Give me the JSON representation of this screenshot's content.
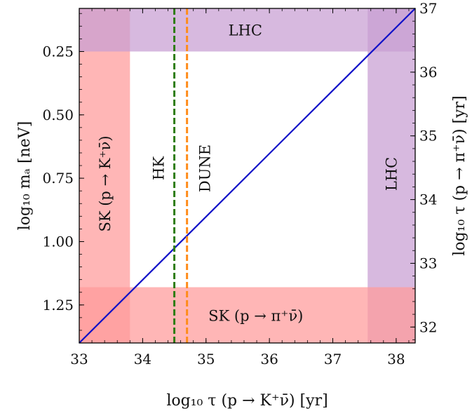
{
  "chart_data": {
    "type": "line",
    "x_axis": {
      "label": "log₁₀ τ (p → K⁺ν̄) [yr]",
      "ticks": [
        33,
        34,
        35,
        36,
        37,
        38
      ],
      "lim": [
        33,
        38.3
      ]
    },
    "y_left": {
      "label": "log₁₀ mₐ [neV]",
      "ticks": [
        0.25,
        0.5,
        0.75,
        1.0,
        1.25
      ],
      "tick_labels": [
        "0.25",
        "0.50",
        "0.75",
        "1.00",
        "1.25"
      ],
      "lim": [
        0.08,
        1.4
      ],
      "inverted": true
    },
    "y_right": {
      "label": "log₁₀ τ (p → π⁺ν̄) [yr]",
      "ticks": [
        32,
        33,
        34,
        35,
        36,
        37
      ],
      "lim": [
        31.75,
        37.0
      ]
    },
    "series": [
      {
        "x": [
          33,
          38.3
        ],
        "y_right": [
          31.75,
          37.0
        ],
        "color": "#1010c8"
      }
    ],
    "vlines": [
      {
        "x": 34.5,
        "color": "#2e7d10",
        "style": "dashed",
        "label": "HK"
      },
      {
        "x": 34.7,
        "color": "#ff8c1a",
        "style": "dashed",
        "label": "DUNE"
      }
    ],
    "regions": [
      {
        "axis": "x",
        "range": [
          33,
          33.8
        ],
        "color": "#ff9a9a",
        "label": "SK (p → K⁺ν̄)"
      },
      {
        "axis": "x",
        "range": [
          37.55,
          38.3
        ],
        "color": "#c89ed2",
        "label": "LHC"
      },
      {
        "axis": "y_left",
        "range": [
          0.08,
          0.25
        ],
        "color": "#c89ed2",
        "label": "LHC"
      },
      {
        "axis": "y_left",
        "range": [
          1.18,
          1.4
        ],
        "color": "#ff9a9a",
        "label": "SK (p → π⁺ν̄)"
      }
    ]
  }
}
